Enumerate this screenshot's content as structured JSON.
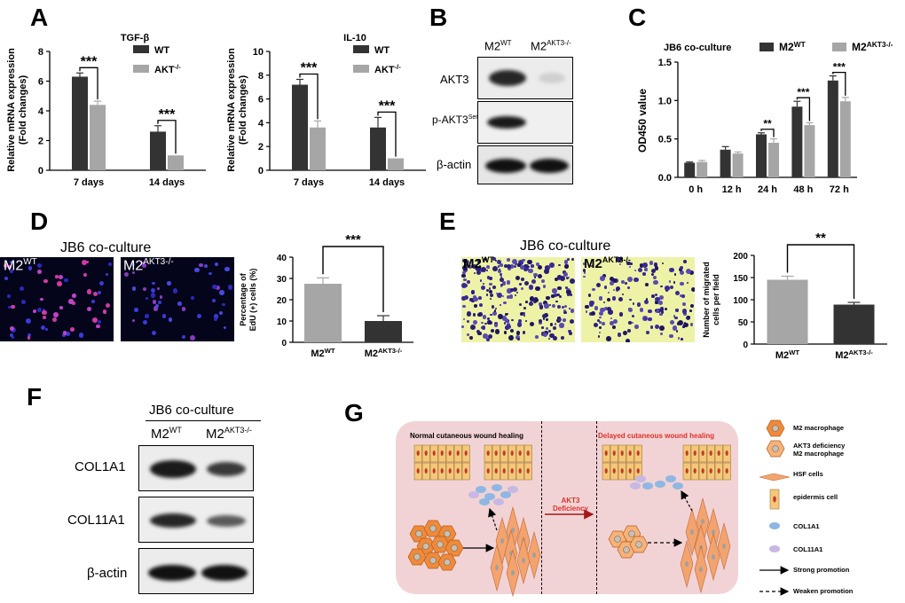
{
  "panels": {
    "A": "A",
    "B": "B",
    "C": "C",
    "D": "D",
    "E": "E",
    "F": "F",
    "G": "G"
  },
  "chart_data": [
    {
      "id": "A1",
      "type": "bar",
      "title": "TGF-β",
      "ylabel": "Relative mRNA expression\n(Fold changes)",
      "ylabel_line1": "Relative mRNA expression",
      "ylabel_line2": "(Fold changes)",
      "categories": [
        "7 days",
        "14 days"
      ],
      "ylim": [
        0,
        8
      ],
      "yticks": [
        "0",
        "2",
        "4",
        "6",
        "8"
      ],
      "series": [
        {
          "name": "WT",
          "values": [
            6.3,
            2.6
          ],
          "errors": [
            0.25,
            0.4
          ],
          "color": "#333333"
        },
        {
          "name": "AKT-/-",
          "values": [
            4.4,
            1.0
          ],
          "errors": [
            0.25,
            0.0
          ],
          "color": "#a6a6a6"
        }
      ],
      "legend": [
        {
          "name": "WT",
          "sup": ""
        },
        {
          "name": "AKT",
          "sup": "-/-"
        }
      ],
      "significance": [
        "***",
        "***"
      ]
    },
    {
      "id": "A2",
      "type": "bar",
      "title": "IL-10",
      "ylabel_line1": "Relative mRNA expression",
      "ylabel_line2": "(Fold changes)",
      "categories": [
        "7 days",
        "14 days"
      ],
      "ylim": [
        0,
        10
      ],
      "yticks": [
        "0",
        "2",
        "4",
        "6",
        "8",
        "10"
      ],
      "series": [
        {
          "name": "WT",
          "values": [
            7.2,
            3.6
          ],
          "errors": [
            0.45,
            0.85
          ],
          "color": "#333333"
        },
        {
          "name": "AKT-/-",
          "values": [
            3.6,
            1.0
          ],
          "errors": [
            0.55,
            0.0
          ],
          "color": "#a6a6a6"
        }
      ],
      "legend": [
        {
          "name": "WT",
          "sup": ""
        },
        {
          "name": "AKT",
          "sup": "-/-"
        }
      ],
      "significance": [
        "***",
        "***"
      ]
    },
    {
      "id": "C",
      "type": "bar",
      "title": "JB6 co-culture",
      "ylabel": "OD450 value",
      "categories": [
        "0 h",
        "12 h",
        "24 h",
        "48 h",
        "72 h"
      ],
      "ylim": [
        0,
        1.5
      ],
      "yticks": [
        "0.0",
        "0.5",
        "1.0",
        "1.5"
      ],
      "series": [
        {
          "name": "M2WT",
          "values": [
            0.19,
            0.36,
            0.56,
            0.92,
            1.26
          ],
          "errors": [
            0.01,
            0.04,
            0.02,
            0.07,
            0.06
          ],
          "color": "#333333"
        },
        {
          "name": "M2AKT3-/-",
          "values": [
            0.2,
            0.31,
            0.45,
            0.68,
            0.99
          ],
          "errors": [
            0.02,
            0.02,
            0.05,
            0.03,
            0.05
          ],
          "color": "#a6a6a6"
        }
      ],
      "legend": [
        {
          "name": "M2",
          "sup": "WT"
        },
        {
          "name": "M2",
          "sup": "AKT3-/-"
        }
      ],
      "significance": [
        "",
        "",
        "**",
        "***",
        "***"
      ]
    },
    {
      "id": "D",
      "type": "bar",
      "ylabel_line1": "Percentage of",
      "ylabel_line2": "EdU (+) cells  (%)",
      "categories": [
        "M2WT",
        "M2AKT3-/-"
      ],
      "category_labels": [
        {
          "base": "M2",
          "sup": "WT"
        },
        {
          "base": "M2",
          "sup": "AKT3-/-"
        }
      ],
      "ylim": [
        0,
        40
      ],
      "yticks": [
        "0",
        "10",
        "20",
        "30",
        "40"
      ],
      "values": [
        27.5,
        10.0
      ],
      "errors": [
        2.8,
        2.5
      ],
      "colors": [
        "#a6a6a6",
        "#333333"
      ],
      "significance": "***"
    },
    {
      "id": "E",
      "type": "bar",
      "ylabel_line1": "Number of migrated",
      "ylabel_line2": "cells per field",
      "categories": [
        "M2WT",
        "M2AKT3-/-"
      ],
      "category_labels": [
        {
          "base": "M2",
          "sup": "WT"
        },
        {
          "base": "M2",
          "sup": "AKT3-/-"
        }
      ],
      "ylim": [
        0,
        200
      ],
      "yticks": [
        "0",
        "50",
        "100",
        "150",
        "200"
      ],
      "values": [
        145,
        89
      ],
      "errors": [
        8,
        5
      ],
      "colors": [
        "#a6a6a6",
        "#333333"
      ],
      "significance": "**"
    }
  ],
  "blotB": {
    "col1": "M2",
    "col1_sup": "WT",
    "col2": "M2",
    "col2_sup": "AKT3-/-",
    "rows": [
      {
        "label": "AKT3",
        "sup": ""
      },
      {
        "label": "p-AKT3",
        "sup": "Ser472"
      },
      {
        "label": "β-actin",
        "sup": ""
      }
    ]
  },
  "blotF": {
    "title": "JB6 co-culture",
    "col1": "M2",
    "col1_sup": "WT",
    "col2": "M2",
    "col2_sup": "AKT3-/-",
    "rows": [
      {
        "label": "COL1A1"
      },
      {
        "label": "COL11A1"
      },
      {
        "label": "β-actin"
      }
    ]
  },
  "panelD": {
    "title": "JB6 co-culture",
    "img1": "M2",
    "img1_sup": "WT",
    "img2": "M2",
    "img2_sup": "AKT3-/-"
  },
  "panelE": {
    "title": "JB6 co-culture",
    "img1": "M2",
    "img1_sup": "WT",
    "img2": "M2",
    "img2_sup": "AKT3-/-"
  },
  "diagramG": {
    "left_title": "Normal cutaneous wound healing",
    "right_title": "Delayed cutaneous wound healing",
    "arrow_label_1": "AKT3",
    "arrow_label_2": "Deficiency",
    "legend": [
      {
        "text": "M2 macrophage"
      },
      {
        "text": "AKT3 deficiency\nM2 macrophage",
        "line1": "AKT3 deficiency",
        "line2": "M2 macrophage"
      },
      {
        "text": "HSF cells"
      },
      {
        "text": "epidermis cell"
      },
      {
        "text": "COL1A1"
      },
      {
        "text": "COL11A1"
      },
      {
        "text": "Strong promotion"
      },
      {
        "text": "Weaken promotion"
      }
    ],
    "colors": {
      "background": "#f2d3d5",
      "cell_fill": "#f4c77a",
      "macrophage": "#f08a3a",
      "hsf": "#f3a46e",
      "col1a1": "#8fb7e3",
      "col11a1": "#c7b8e3",
      "arrow_text": "#e0302b"
    }
  }
}
